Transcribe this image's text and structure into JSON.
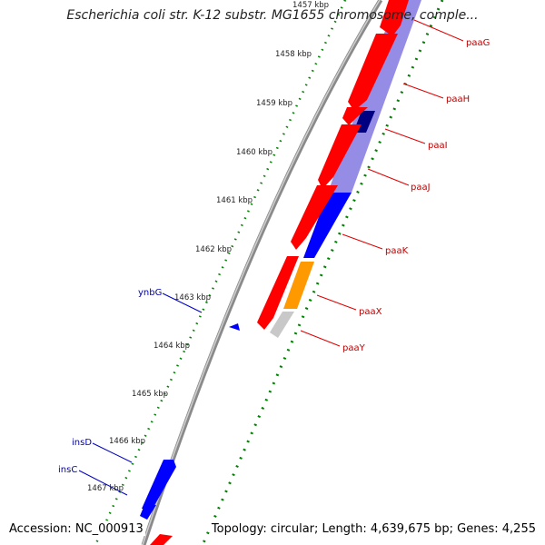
{
  "title": "Escherichia coli str. K-12 substr. MG1655 chromosome, comple...",
  "footer": {
    "accession": "Accession: NC_000913",
    "topology": "Topology: circular; Length: 4,639,675 bp; Genes: 4,255"
  },
  "ruler_labels": [
    "1457 kbp",
    "1458 kbp",
    "1459 kbp",
    "1460 kbp",
    "1461 kbp",
    "1462 kbp",
    "1463 kbp",
    "1464 kbp",
    "1465 kbp",
    "1466 kbp",
    "1467 kbp"
  ],
  "genes_right": [
    "paaG",
    "paaH",
    "paaI",
    "paaJ",
    "paaK",
    "paaX",
    "paaY"
  ],
  "genes_left": [
    "ynbG",
    "insD",
    "insC"
  ],
  "colors": {
    "forward": "#ff0000",
    "reverse_blue": "#0000ff",
    "lavender": "#7b6fe0",
    "navy": "#000080",
    "orange": "#ff9900",
    "gray": "#c0c0c0",
    "ticks": "#008000",
    "backbone": "#888888",
    "label_red": "#c00000",
    "label_blue": "#0000b0"
  }
}
